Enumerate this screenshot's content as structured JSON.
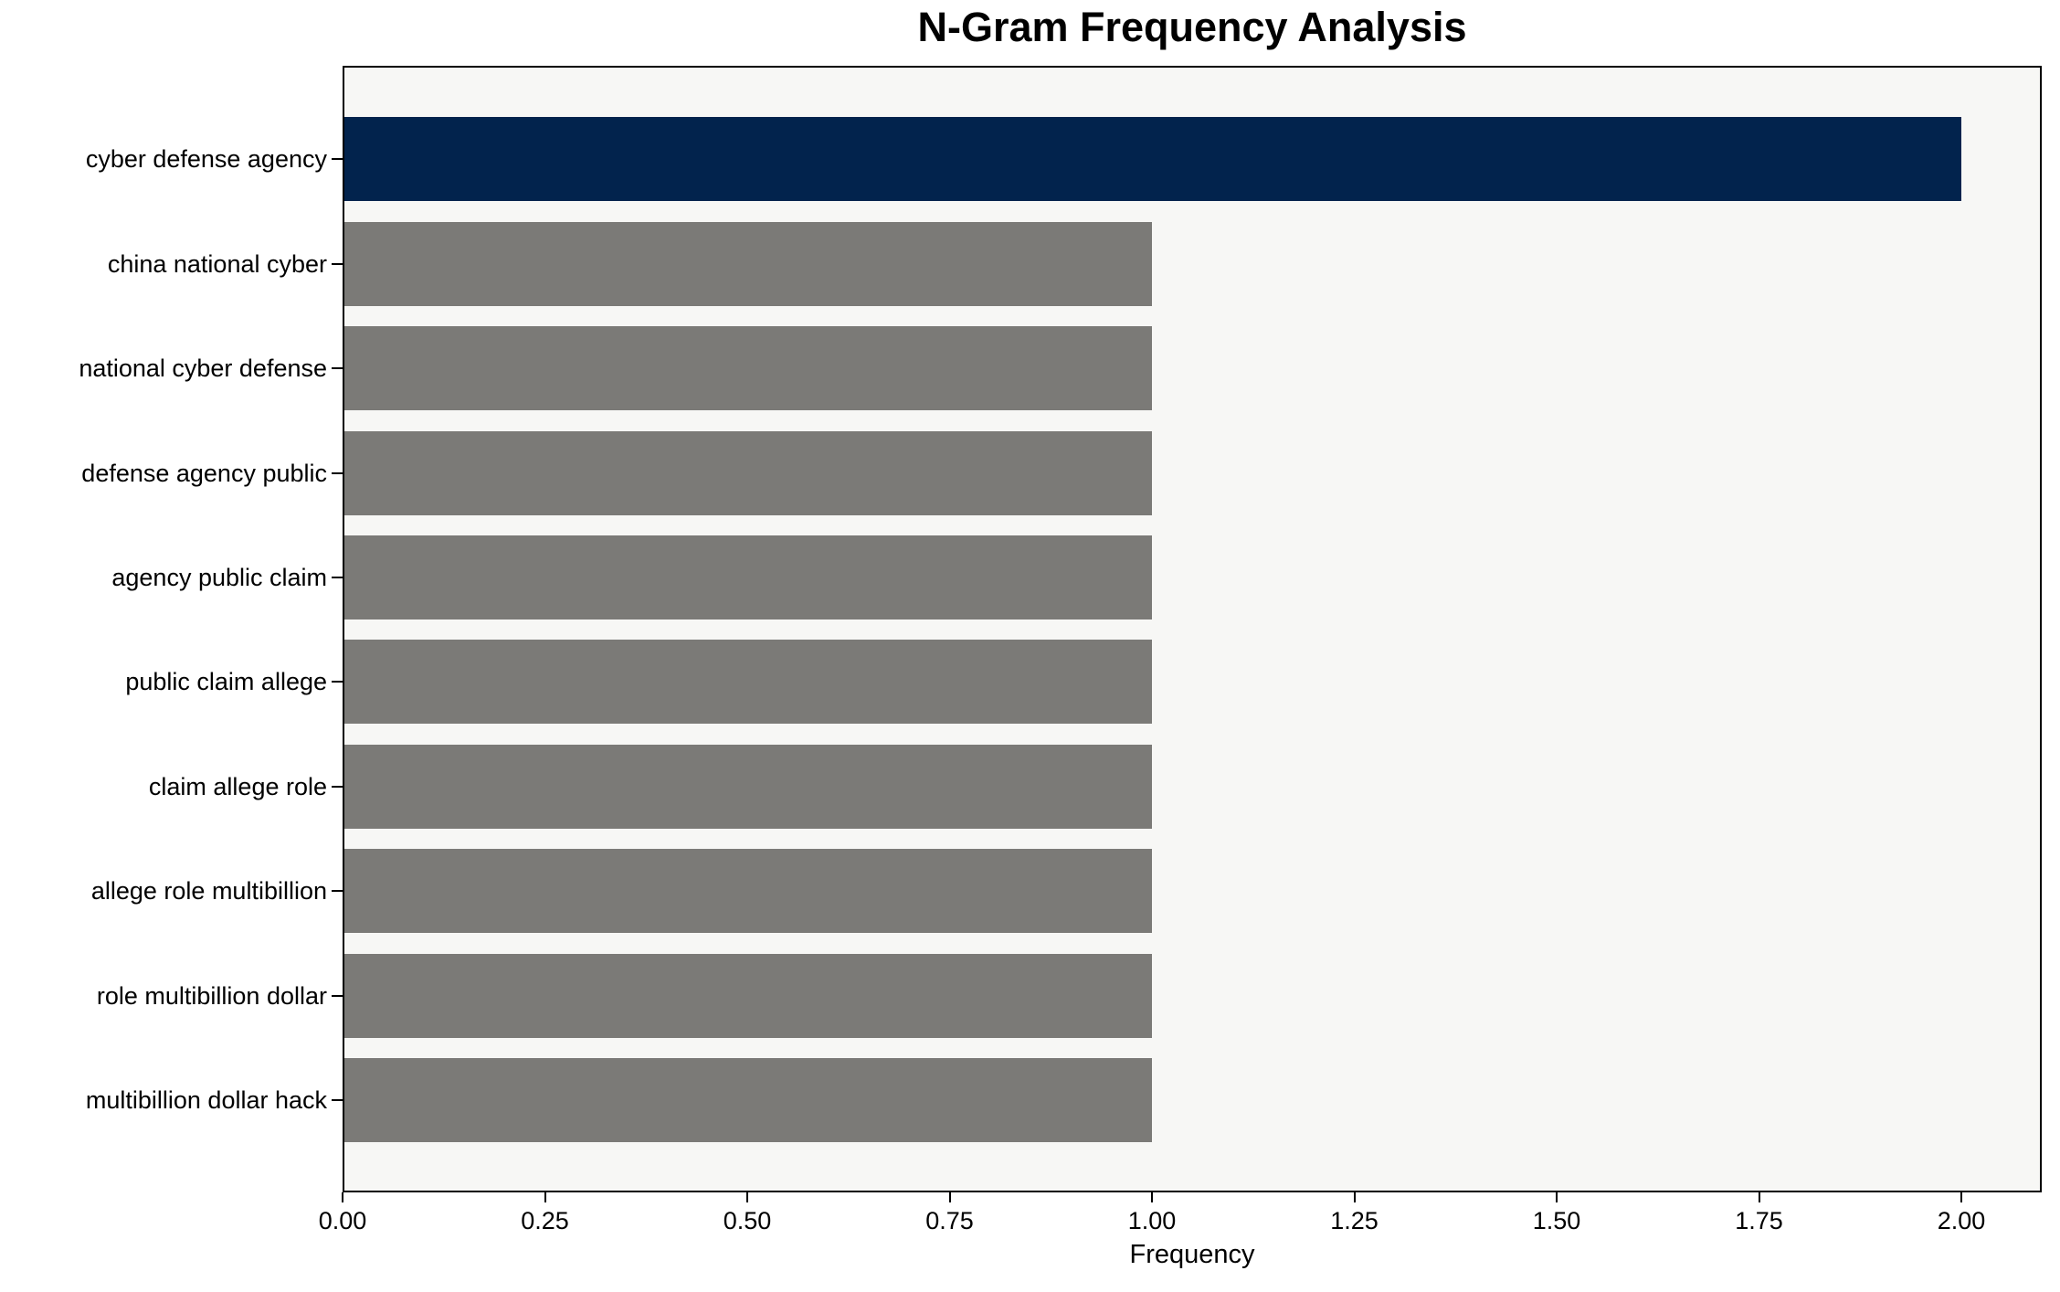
{
  "chart_data": {
    "type": "bar",
    "orientation": "horizontal",
    "title": "N-Gram Frequency Analysis",
    "xlabel": "Frequency",
    "ylabel": "",
    "categories": [
      "cyber defense agency",
      "china national cyber",
      "national cyber defense",
      "defense agency public",
      "agency public claim",
      "public claim allege",
      "claim allege role",
      "allege role multibillion",
      "role multibillion dollar",
      "multibillion dollar hack"
    ],
    "values": [
      2,
      1,
      1,
      1,
      1,
      1,
      1,
      1,
      1,
      1
    ],
    "bar_colors": [
      "#02234d",
      "#7b7a77",
      "#7b7a77",
      "#7b7a77",
      "#7b7a77",
      "#7b7a77",
      "#7b7a77",
      "#7b7a77",
      "#7b7a77",
      "#7b7a77"
    ],
    "highlight_color": "#02234d",
    "default_color": "#7b7a77",
    "plot_background": "#f7f7f5",
    "axis_color": "#000000",
    "xlim": [
      0,
      2.099
    ],
    "xticks": [
      {
        "value": 0.0,
        "label": "0.00"
      },
      {
        "value": 0.25,
        "label": "0.25"
      },
      {
        "value": 0.5,
        "label": "0.50"
      },
      {
        "value": 0.75,
        "label": "0.75"
      },
      {
        "value": 1.0,
        "label": "1.00"
      },
      {
        "value": 1.25,
        "label": "1.25"
      },
      {
        "value": 1.5,
        "label": "1.50"
      },
      {
        "value": 1.75,
        "label": "1.75"
      },
      {
        "value": 2.0,
        "label": "2.00"
      }
    ],
    "grid": false,
    "legend": null
  }
}
